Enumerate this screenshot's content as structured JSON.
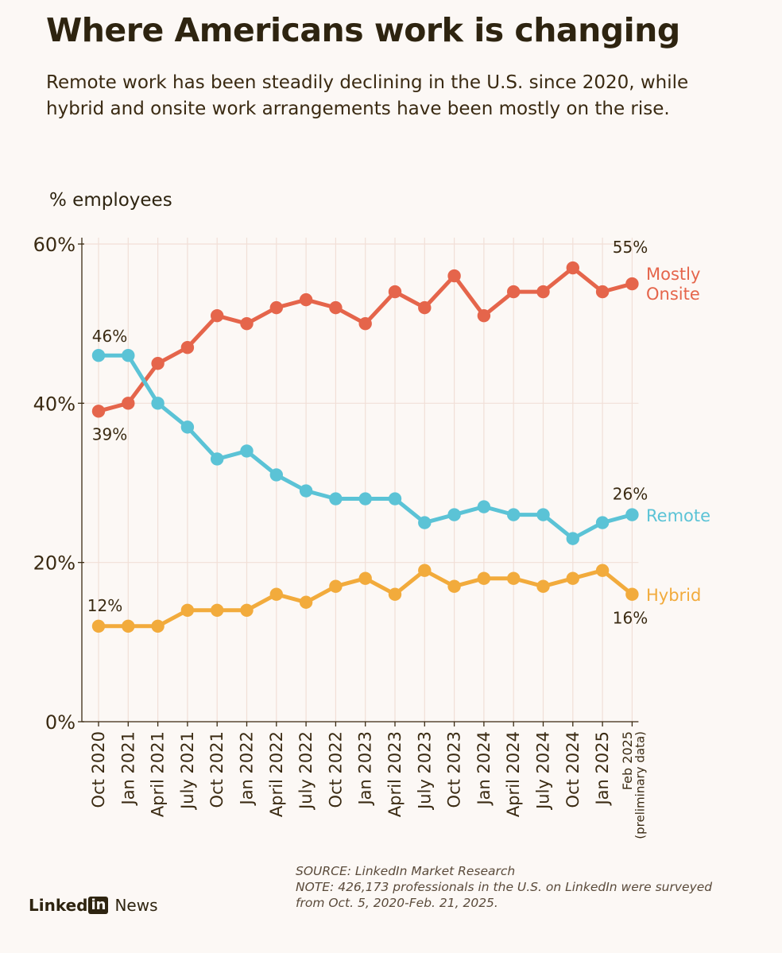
{
  "header": {
    "title": "Where Americans work is changing",
    "subtitle": "Remote work has been steadily declining in the U.S. since 2020, while hybrid and onsite work arrangements have been mostly on the rise."
  },
  "chart_data": {
    "type": "line",
    "ylabel": "% employees",
    "xlabel": "",
    "ylim": [
      0,
      60
    ],
    "yticks": [
      "0%",
      "20%",
      "40%",
      "60%"
    ],
    "grid": true,
    "categories": [
      "Oct 2020",
      "Jan 2021",
      "April 2021",
      "July 2021",
      "Oct 2021",
      "Jan 2022",
      "April 2022",
      "July 2022",
      "Oct 2022",
      "Jan 2023",
      "April 2023",
      "July 2023",
      "Oct 2023",
      "Jan 2024",
      "April 2024",
      "July 2024",
      "Oct 2024",
      "Jan 2025",
      "Feb 2025"
    ],
    "last_category_note": "(preliminary data)",
    "series": [
      {
        "name": "Mostly Onsite",
        "label_lines": [
          "Mostly",
          "Onsite"
        ],
        "color": "#e5654b",
        "values": [
          39,
          40,
          45,
          47,
          51,
          50,
          52,
          53,
          52,
          50,
          54,
          52,
          56,
          51,
          54,
          54,
          57,
          54,
          55
        ],
        "start_label": "39%",
        "end_label": "55%"
      },
      {
        "name": "Remote",
        "label_lines": [
          "Remote"
        ],
        "color": "#5bc3d6",
        "values": [
          46,
          46,
          40,
          37,
          33,
          34,
          31,
          29,
          28,
          28,
          28,
          25,
          26,
          27,
          26,
          26,
          23,
          25,
          26
        ],
        "start_label": "46%",
        "end_label": "26%"
      },
      {
        "name": "Hybrid",
        "label_lines": [
          "Hybrid"
        ],
        "color": "#f2ab3c",
        "values": [
          12,
          12,
          12,
          14,
          14,
          14,
          16,
          15,
          17,
          18,
          16,
          19,
          17,
          18,
          18,
          17,
          18,
          19,
          16
        ],
        "start_label": "12%",
        "end_label": "16%"
      }
    ]
  },
  "footer": {
    "source": "SOURCE: LinkedIn Market Research",
    "note_line1": "NOTE: 426,173 professionals in the U.S. on LinkedIn were surveyed",
    "note_line2": "from Oct. 5, 2020-Feb. 21, 2025."
  },
  "brand": {
    "linked": "Linked",
    "in": "in",
    "news": "News"
  }
}
